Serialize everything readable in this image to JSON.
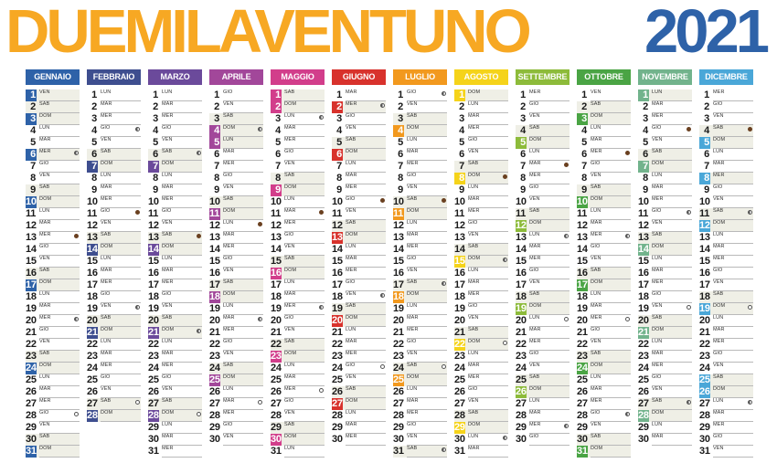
{
  "header": {
    "title": "DUEMILAVENTUNO",
    "year": "2021"
  },
  "weekday_names": [
    "LUN",
    "MAR",
    "MER",
    "GIO",
    "VEN",
    "SAB",
    "DOM"
  ],
  "months": [
    {
      "name": "GENNAIO",
      "color": "#2e62a8",
      "days": 31,
      "first_weekday": 4,
      "holidays": [
        1,
        6
      ]
    },
    {
      "name": "FEBBRAIO",
      "color": "#3e4e8f",
      "days": 28,
      "first_weekday": 0,
      "holidays": []
    },
    {
      "name": "MARZO",
      "color": "#6b4a9b",
      "days": 31,
      "first_weekday": 0,
      "holidays": []
    },
    {
      "name": "APRILE",
      "color": "#a2479a",
      "days": 30,
      "first_weekday": 3,
      "holidays": [
        4,
        5,
        25
      ]
    },
    {
      "name": "MAGGIO",
      "color": "#d23e8b",
      "days": 31,
      "first_weekday": 5,
      "holidays": [
        1
      ]
    },
    {
      "name": "GIUGNO",
      "color": "#d8322c",
      "days": 30,
      "first_weekday": 1,
      "holidays": [
        2
      ]
    },
    {
      "name": "LUGLIO",
      "color": "#f2991e",
      "days": 31,
      "first_weekday": 3,
      "holidays": []
    },
    {
      "name": "AGOSTO",
      "color": "#f5d31a",
      "days": 31,
      "first_weekday": 6,
      "holidays": [
        15
      ]
    },
    {
      "name": "SETTEMBRE",
      "color": "#8dbb3a",
      "days": 30,
      "first_weekday": 2,
      "holidays": []
    },
    {
      "name": "OTTOBRE",
      "color": "#4aa444",
      "days": 31,
      "first_weekday": 4,
      "holidays": []
    },
    {
      "name": "NOVEMBRE",
      "color": "#72b38c",
      "days": 30,
      "first_weekday": 0,
      "holidays": [
        1
      ]
    },
    {
      "name": "DICEMBRE",
      "color": "#4aa7d8",
      "days": 31,
      "first_weekday": 2,
      "holidays": [
        8,
        25,
        26
      ]
    }
  ],
  "moon_phases": {
    "0": {
      "full": 28,
      "new": 13,
      "half": [
        6,
        20
      ]
    },
    "1": {
      "full": 27,
      "new": 11,
      "half": [
        4,
        19
      ]
    },
    "2": {
      "full": 28,
      "new": 13,
      "half": [
        6,
        21
      ]
    },
    "3": {
      "full": 27,
      "new": 12,
      "half": [
        4,
        20
      ]
    },
    "4": {
      "full": 26,
      "new": 11,
      "half": [
        3,
        19
      ]
    },
    "5": {
      "full": 24,
      "new": 10,
      "half": [
        2,
        18
      ]
    },
    "6": {
      "full": 24,
      "new": 10,
      "half": [
        1,
        17,
        31
      ]
    },
    "7": {
      "full": 22,
      "new": 8,
      "half": [
        15,
        30
      ]
    },
    "8": {
      "full": 20,
      "new": 7,
      "half": [
        13,
        29
      ]
    },
    "9": {
      "full": 20,
      "new": 6,
      "half": [
        13,
        28
      ]
    },
    "10": {
      "full": 19,
      "new": 4,
      "half": [
        11,
        27
      ]
    },
    "11": {
      "full": 19,
      "new": 4,
      "half": [
        11,
        27
      ]
    }
  }
}
